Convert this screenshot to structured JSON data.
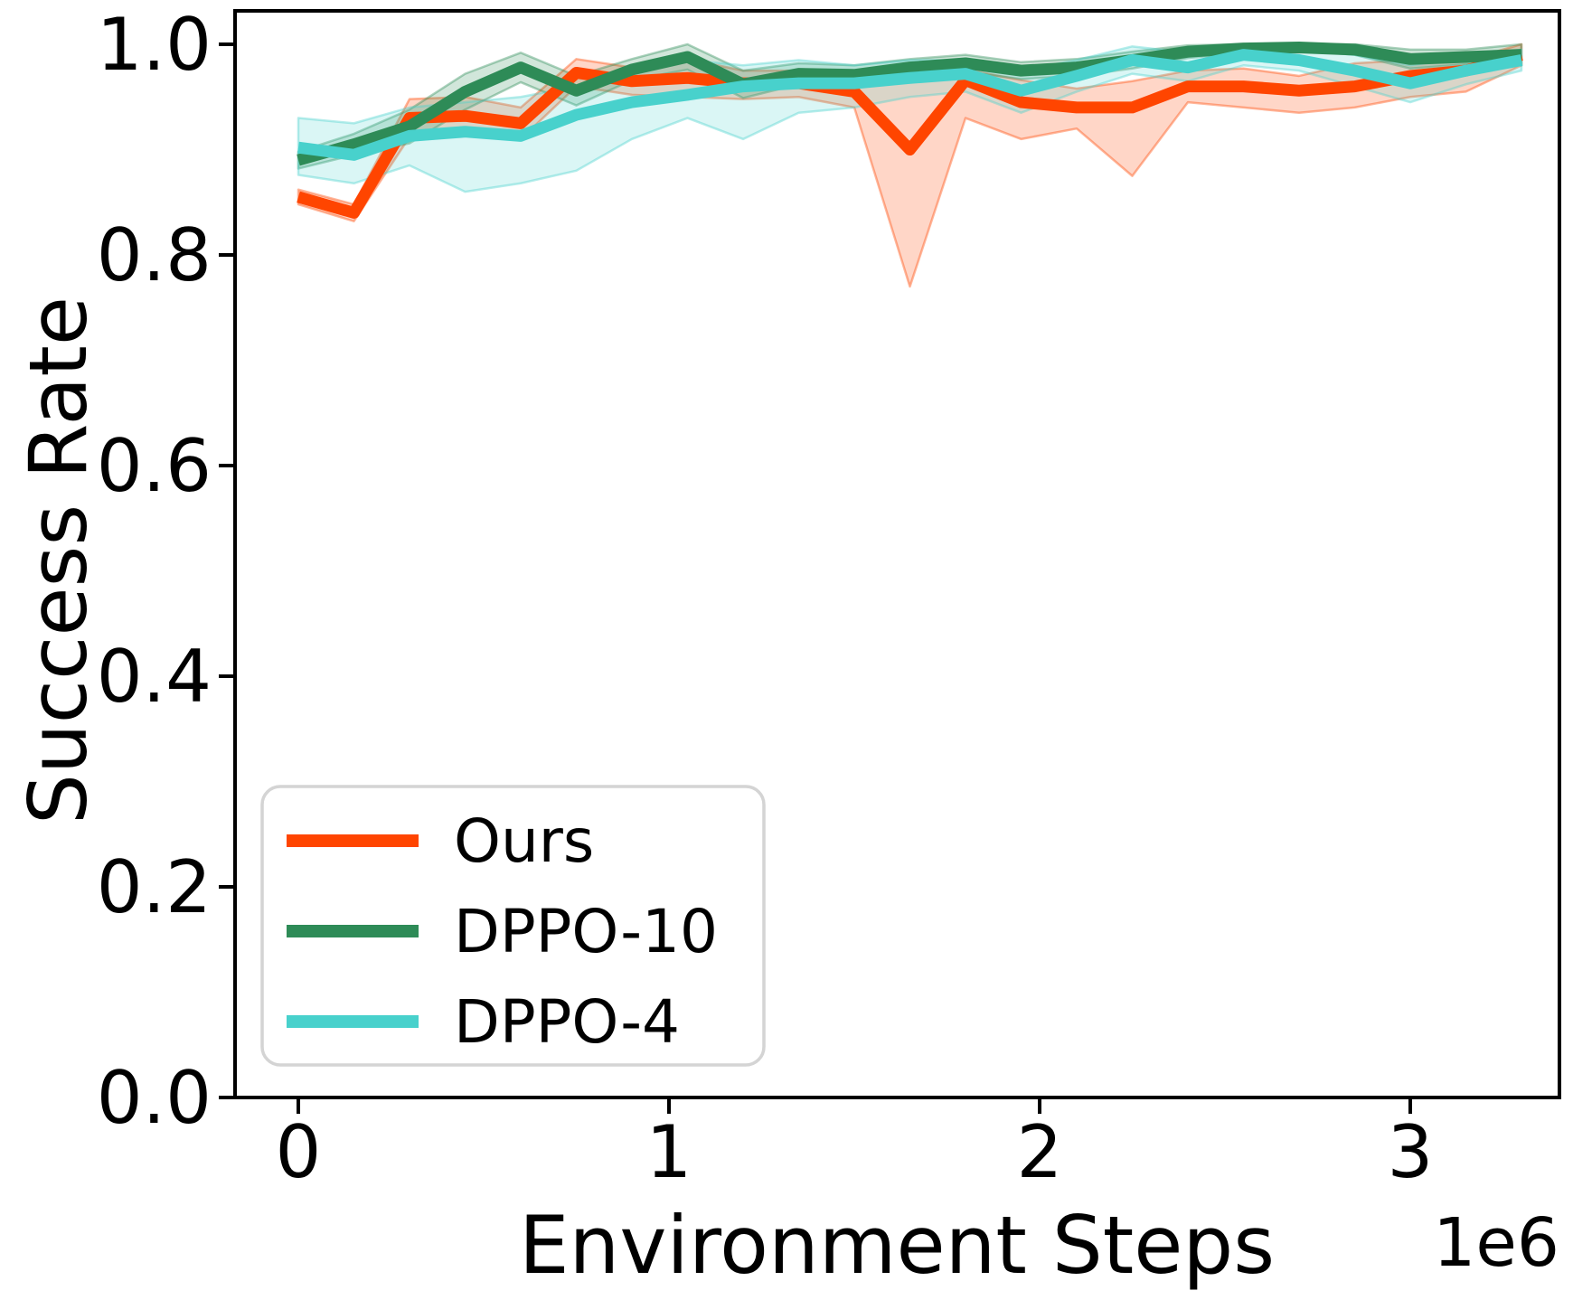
{
  "chart_data": {
    "type": "line",
    "title": "",
    "xlabel": "Environment Steps",
    "ylabel": "Success Rate",
    "x_offset_text": "1e6",
    "xticks": [
      "0",
      "1",
      "2",
      "3"
    ],
    "yticks": [
      "0.0",
      "0.2",
      "0.4",
      "0.6",
      "0.8",
      "1.0"
    ],
    "xlim": [
      -0.17,
      3.4
    ],
    "ylim": [
      0.0,
      1.03
    ],
    "grid": false,
    "legend_position": "lower left",
    "x": [
      0.0,
      0.15,
      0.3,
      0.45,
      0.6,
      0.75,
      0.9,
      1.05,
      1.2,
      1.35,
      1.5,
      1.65,
      1.8,
      1.95,
      2.1,
      2.25,
      2.4,
      2.55,
      2.7,
      2.85,
      3.0,
      3.15,
      3.3
    ],
    "series": [
      {
        "name": "Ours",
        "color": "#FF4500",
        "band_fill_opacity": 0.22,
        "values": [
          0.855,
          0.84,
          0.93,
          0.932,
          0.925,
          0.973,
          0.965,
          0.968,
          0.963,
          0.963,
          0.955,
          0.9,
          0.966,
          0.945,
          0.94,
          0.94,
          0.96,
          0.96,
          0.956,
          0.96,
          0.97,
          0.975,
          0.99
        ],
        "band_upper": [
          0.862,
          0.848,
          0.948,
          0.95,
          0.94,
          0.986,
          0.978,
          0.986,
          0.975,
          0.975,
          0.968,
          0.965,
          0.976,
          0.966,
          0.958,
          0.965,
          0.975,
          0.977,
          0.97,
          0.982,
          0.985,
          0.985,
          1.0
        ],
        "band_lower": [
          0.848,
          0.832,
          0.912,
          0.915,
          0.91,
          0.96,
          0.952,
          0.95,
          0.948,
          0.95,
          0.94,
          0.77,
          0.93,
          0.91,
          0.92,
          0.875,
          0.945,
          0.94,
          0.935,
          0.94,
          0.95,
          0.955,
          0.98
        ]
      },
      {
        "name": "DPPO-10",
        "color": "#2E8B57",
        "band_fill_opacity": 0.22,
        "values": [
          0.89,
          0.905,
          0.922,
          0.955,
          0.978,
          0.956,
          0.976,
          0.988,
          0.962,
          0.972,
          0.971,
          0.978,
          0.982,
          0.975,
          0.978,
          0.985,
          0.993,
          0.996,
          0.997,
          0.995,
          0.986,
          0.988,
          0.99
        ],
        "band_upper": [
          0.898,
          0.915,
          0.938,
          0.972,
          0.992,
          0.97,
          0.986,
          1.0,
          0.975,
          0.982,
          0.98,
          0.986,
          0.99,
          0.983,
          0.986,
          0.993,
          0.999,
          1.0,
          1.0,
          1.0,
          0.995,
          0.995,
          1.0
        ],
        "band_lower": [
          0.882,
          0.895,
          0.906,
          0.938,
          0.964,
          0.942,
          0.966,
          0.976,
          0.949,
          0.962,
          0.962,
          0.97,
          0.974,
          0.967,
          0.97,
          0.977,
          0.987,
          0.992,
          0.994,
          0.99,
          0.977,
          0.981,
          0.98
        ]
      },
      {
        "name": "DPPO-4",
        "color": "#48D1CC",
        "band_fill_opacity": 0.2,
        "values": [
          0.902,
          0.895,
          0.913,
          0.917,
          0.913,
          0.933,
          0.945,
          0.952,
          0.96,
          0.963,
          0.963,
          0.968,
          0.972,
          0.956,
          0.97,
          0.985,
          0.978,
          0.99,
          0.985,
          0.975,
          0.963,
          0.975,
          0.985
        ],
        "band_upper": [
          0.93,
          0.925,
          0.94,
          0.945,
          0.95,
          0.96,
          0.975,
          0.985,
          0.98,
          0.985,
          0.98,
          0.985,
          0.985,
          0.975,
          0.985,
          0.998,
          0.992,
          1.0,
          0.995,
          0.99,
          0.98,
          0.988,
          0.995
        ],
        "band_lower": [
          0.876,
          0.868,
          0.885,
          0.86,
          0.868,
          0.88,
          0.91,
          0.93,
          0.91,
          0.935,
          0.94,
          0.95,
          0.955,
          0.935,
          0.955,
          0.972,
          0.965,
          0.98,
          0.975,
          0.96,
          0.945,
          0.962,
          0.975
        ]
      }
    ]
  }
}
